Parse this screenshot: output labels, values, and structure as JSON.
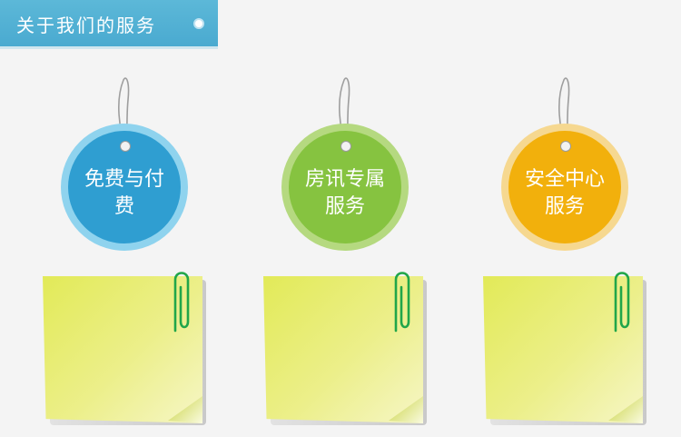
{
  "header": {
    "title": "关于我们的服务"
  },
  "services": [
    {
      "label": "免费与付费"
    },
    {
      "label": "房讯专属服务"
    },
    {
      "label": "安全中心服务"
    }
  ],
  "colors": {
    "header": "#4aaad0",
    "tag_blue": "#2f9ed1",
    "tag_green": "#86c340",
    "tag_orange": "#f2b00c",
    "note": "#e6ec6e",
    "clip": "#21a64a"
  }
}
